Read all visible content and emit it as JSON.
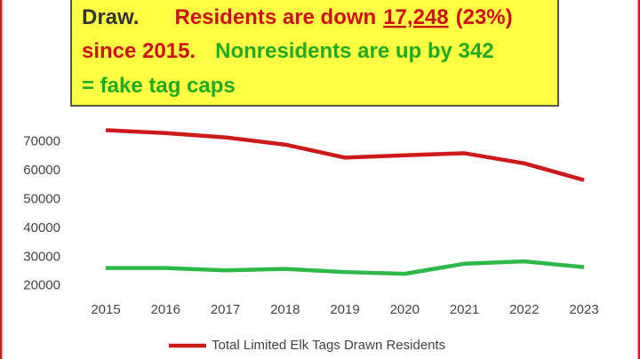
{
  "chart_data": {
    "type": "line",
    "annotation": {
      "background": "#ffff44",
      "lines": [
        [
          {
            "text": "Draw.",
            "color": "#333333"
          },
          {
            "text": "Residents are down",
            "color": "#cc1111"
          },
          {
            "text": "17,248",
            "color": "#cc1111",
            "underline": true
          },
          {
            "text": "(23%)",
            "color": "#cc1111"
          }
        ],
        [
          {
            "text": "since 2015.",
            "color": "#cc1111"
          },
          {
            "text": "Nonresidents are up by 342",
            "color": "#22aa22"
          }
        ],
        [
          {
            "text": "= fake tag caps",
            "color": "#22aa22"
          }
        ]
      ]
    },
    "categories": [
      "2015",
      "2016",
      "2017",
      "2018",
      "2019",
      "2020",
      "2021",
      "2022",
      "2023"
    ],
    "series": [
      {
        "name": "Total Limited Elk Tags Drawn Residents",
        "color": "#cc1a1a",
        "values": [
          74000,
          73000,
          71500,
          69000,
          64500,
          65300,
          66000,
          62500,
          56700
        ]
      },
      {
        "color": "#2eb84a",
        "values": [
          26200,
          26200,
          25400,
          25900,
          24800,
          24200,
          27700,
          28500,
          26500
        ]
      }
    ],
    "ylim": [
      15000,
      80000
    ],
    "yticks": [
      20000,
      30000,
      40000,
      50000,
      60000,
      70000
    ],
    "grid": false,
    "legend": "bottom"
  }
}
